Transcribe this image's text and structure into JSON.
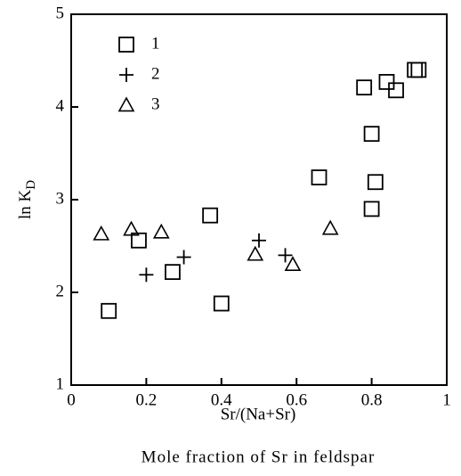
{
  "chart_data": {
    "type": "scatter",
    "xlabel": "Sr/(Na+Sr)",
    "ylabel": "ln K",
    "ylabel_sub": "D",
    "caption": "Mole fraction of Sr in feldspar",
    "xlim": [
      0,
      1
    ],
    "ylim": [
      1,
      5
    ],
    "xticks": [
      0,
      0.2,
      0.4,
      0.6,
      0.8,
      1
    ],
    "yticks": [
      1,
      2,
      3,
      4,
      5
    ],
    "legend": "upper left",
    "series": [
      {
        "name": "1",
        "marker": "square",
        "color": "#000000",
        "x": [
          0.1,
          0.18,
          0.27,
          0.37,
          0.4,
          0.66,
          0.78,
          0.84,
          0.865,
          0.915,
          0.925,
          0.8,
          0.81,
          0.8
        ],
        "values": [
          1.8,
          2.56,
          2.22,
          2.83,
          1.88,
          3.24,
          4.21,
          4.27,
          4.18,
          4.4,
          4.4,
          3.71,
          3.19,
          2.9
        ]
      },
      {
        "name": "2",
        "marker": "plus",
        "color": "#000000",
        "x": [
          0.2,
          0.3,
          0.5,
          0.57
        ],
        "values": [
          2.19,
          2.38,
          2.56,
          2.4
        ]
      },
      {
        "name": "3",
        "marker": "triangle",
        "color": "#000000",
        "x": [
          0.08,
          0.16,
          0.24,
          0.49,
          0.59,
          0.69
        ],
        "values": [
          2.63,
          2.68,
          2.65,
          2.41,
          2.3,
          2.69
        ]
      }
    ]
  }
}
